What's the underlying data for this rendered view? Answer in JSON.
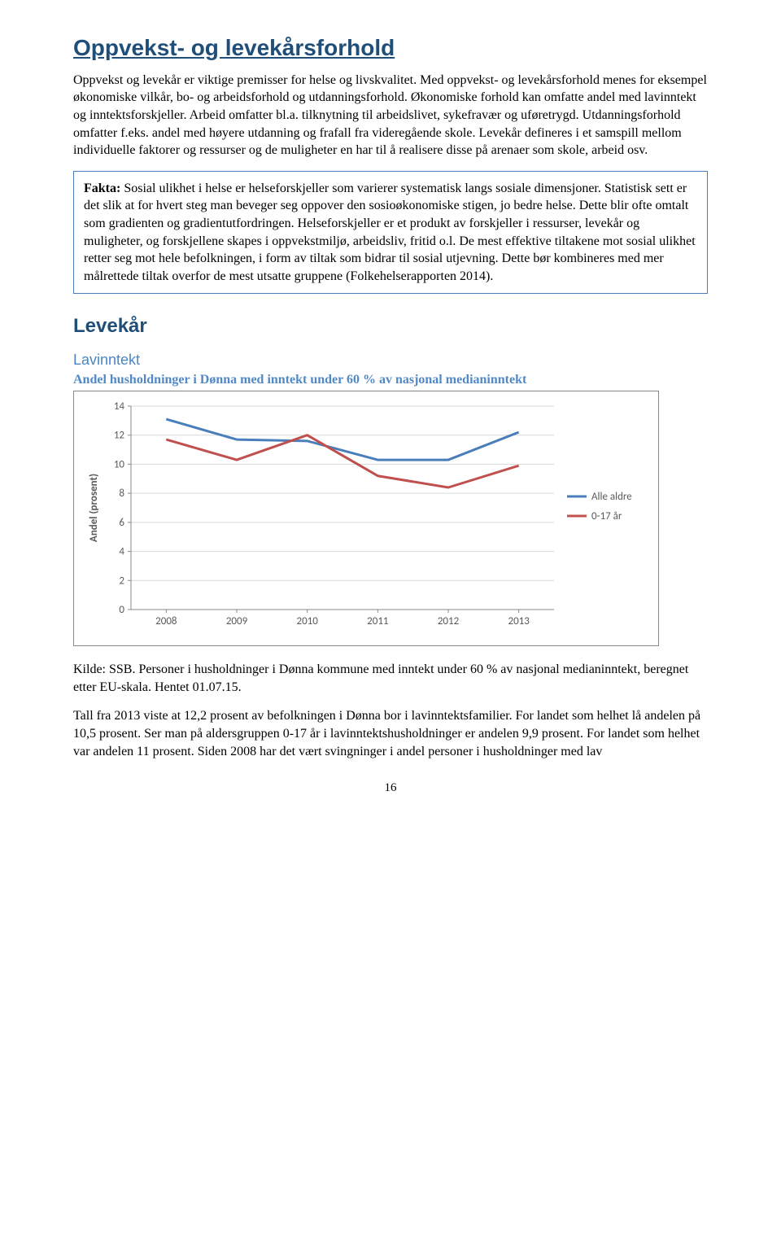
{
  "title": "Oppvekst- og levekårsforhold",
  "intro_para": "Oppvekst og levekår er viktige premisser for helse og livskvalitet. Med oppvekst- og levekårsforhold menes for eksempel økonomiske vilkår, bo- og arbeidsforhold og utdanningsforhold. Økonomiske forhold kan omfatte andel med lavinntekt og inntektsforskjeller. Arbeid omfatter bl.a. tilknytning til arbeidslivet, sykefravær og uføretrygd. Utdanningsforhold omfatter f.eks. andel med høyere utdanning og frafall fra videregående skole. Levekår defineres i et samspill mellom individuelle faktorer og ressurser og de muligheter en har til å realisere disse på arenaer som skole, arbeid osv.",
  "fact_label": "Fakta:",
  "fact_text": " Sosial ulikhet i helse er helseforskjeller som varierer systematisk langs sosiale dimensjoner. Statistisk sett er det slik at for hvert steg man beveger seg oppover den sosioøkonomiske stigen, jo bedre helse. Dette blir ofte omtalt som gradienten og gradientutfordringen. Helseforskjeller er et produkt av forskjeller i ressurser, levekår og muligheter, og forskjellene skapes i oppvekstmiljø, arbeidsliv, fritid o.l. De mest effektive tiltakene mot sosial ulikhet retter seg mot hele befolkningen, i form av tiltak som bidrar til sosial utjevning. Dette bør kombineres med mer målrettede tiltak overfor de mest utsatte gruppene (Folkehelserapporten 2014).",
  "section_h2": "Levekår",
  "section_h3": "Lavinntekt",
  "chart_heading": "Andel husholdninger i Dønna med inntekt under 60 % av nasjonal medianinntekt",
  "chart": {
    "type": "line",
    "x_labels": [
      "2008",
      "2009",
      "2010",
      "2011",
      "2012",
      "2013"
    ],
    "y_label": "Andel (prosent)",
    "y_ticks": [
      0,
      2,
      4,
      6,
      8,
      10,
      12,
      14
    ],
    "ylim": [
      0,
      14
    ],
    "series": [
      {
        "name": "Alle aldre",
        "color": "#4a7ebb",
        "values": [
          13.1,
          11.7,
          11.6,
          10.3,
          10.3,
          12.2
        ]
      },
      {
        "name": "0-17 år",
        "color": "#c0504d",
        "values": [
          11.7,
          10.3,
          12.0,
          9.2,
          8.4,
          9.9
        ]
      }
    ],
    "grid_color": "#d9d9d9",
    "axis_color": "#888888",
    "bg_color": "#ffffff",
    "line_width": 3,
    "tick_fontsize": 13,
    "label_fontsize": 13,
    "legend_fontsize": 13
  },
  "source_para": "Kilde: SSB. Personer i husholdninger i Dønna kommune med inntekt under 60 % av nasjonal medianinntekt, beregnet etter EU-skala. Hentet 01.07.15.",
  "closing_para": "Tall fra 2013 viste at 12,2 prosent av befolkningen i Dønna bor i lavinntektsfamilier. For landet som helhet lå andelen på 10,5 prosent. Ser man på aldersgruppen 0-17 år i lavinntektshusholdninger er andelen 9,9 prosent. For landet som helhet var andelen 11 prosent. Siden 2008 har det vært svingninger i andel personer i husholdninger med lav",
  "page_number": "16"
}
